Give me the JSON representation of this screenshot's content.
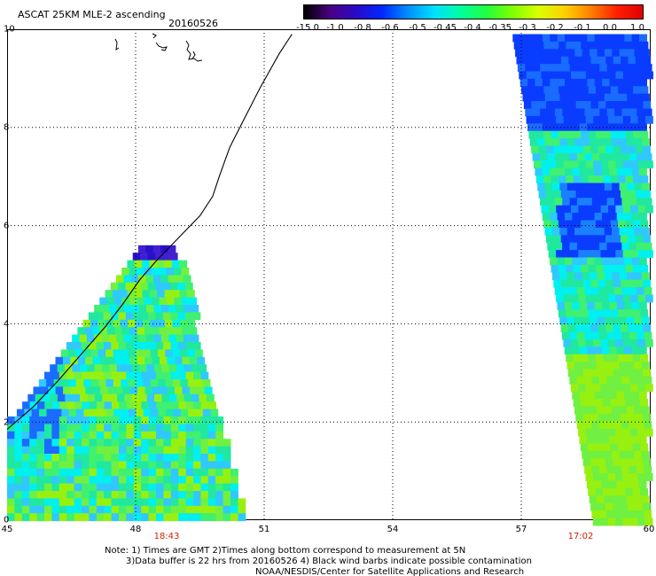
{
  "header": {
    "title": "ASCAT 25KM MLE-2 ascending",
    "date": "20160526"
  },
  "colorbar": {
    "labels": [
      "-15.0",
      "-1.0",
      "-0.8",
      "-0.6",
      "-0.5",
      "-0.45",
      "-0.4",
      "-0.35",
      "-0.3",
      "-0.2",
      "-0.1",
      "0.0",
      "1.0"
    ],
    "colors": [
      "#000000",
      "#4b0082",
      "#2a0ac8",
      "#0028ff",
      "#0090ff",
      "#00e0ff",
      "#00ffa0",
      "#20ff40",
      "#80ff00",
      "#d8ff00",
      "#ffd000",
      "#ff8000",
      "#ff2000",
      "#e00000"
    ]
  },
  "axes": {
    "x_ticks": [
      "45",
      "48",
      "51",
      "54",
      "57",
      "60"
    ],
    "y_ticks": [
      "0",
      "2",
      "4",
      "6",
      "8",
      "10"
    ]
  },
  "times": {
    "left": "18:43",
    "right": "17:02"
  },
  "notes": {
    "line1": "Note: 1) Times are GMT 2)Times along bottom correspond to measurement at 5N",
    "line2": "3)Data buffer is 22 hrs from 20160526 4) Black wind barbs indicate possible contamination",
    "line3": "NOAA/NESDIS/Center for Satellite Applications and Research"
  }
}
